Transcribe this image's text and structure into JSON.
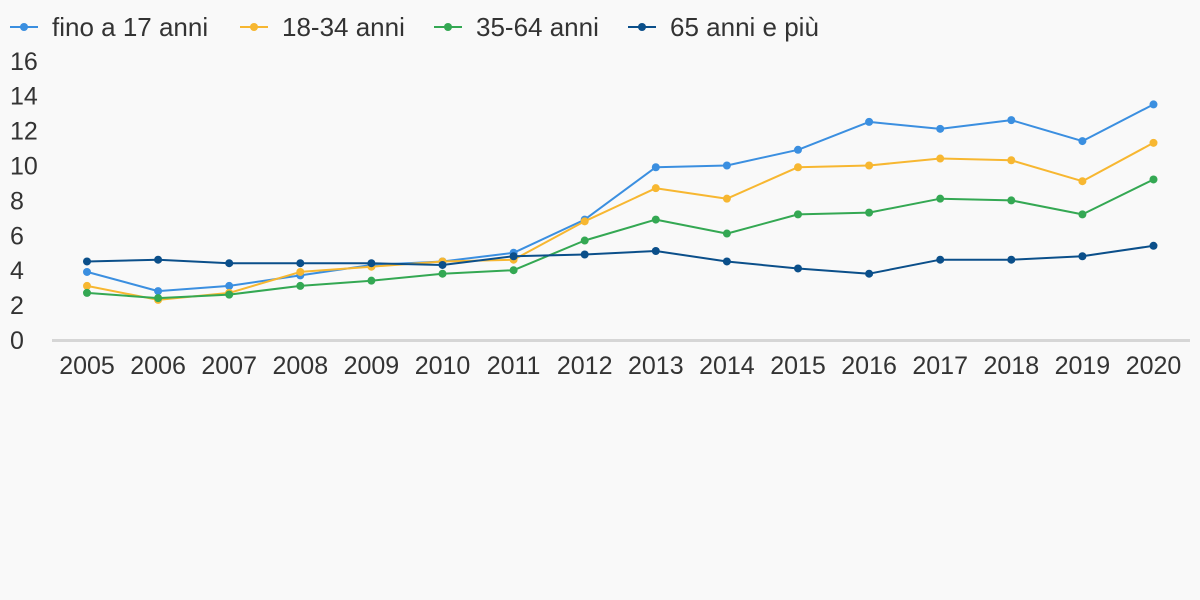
{
  "chart_data": {
    "type": "line",
    "categories": [
      "2005",
      "2006",
      "2007",
      "2008",
      "2009",
      "2010",
      "2011",
      "2012",
      "2013",
      "2014",
      "2015",
      "2016",
      "2017",
      "2018",
      "2019",
      "2020"
    ],
    "ylim": [
      0,
      16
    ],
    "yticks": [
      0,
      2,
      4,
      6,
      8,
      10,
      12,
      14,
      16
    ],
    "grid": false,
    "legend": "top-left",
    "title": "",
    "xlabel": "",
    "ylabel": "",
    "series": [
      {
        "name": "fino a 17 anni",
        "color": "#3b8fe0",
        "values": [
          3.9,
          2.8,
          3.1,
          3.7,
          4.3,
          4.5,
          5.0,
          6.9,
          9.9,
          10.0,
          10.9,
          12.5,
          12.1,
          12.6,
          11.4,
          13.5
        ]
      },
      {
        "name": "18-34 anni",
        "color": "#f7b731",
        "values": [
          3.1,
          2.3,
          2.7,
          3.9,
          4.2,
          4.5,
          4.6,
          6.8,
          8.7,
          8.1,
          9.9,
          10.0,
          10.4,
          10.3,
          9.1,
          11.3
        ]
      },
      {
        "name": "35-64 anni",
        "color": "#34a853",
        "values": [
          2.7,
          2.4,
          2.6,
          3.1,
          3.4,
          3.8,
          4.0,
          5.7,
          6.9,
          6.1,
          7.2,
          7.3,
          8.1,
          8.0,
          7.2,
          9.2
        ]
      },
      {
        "name": "65 anni e più",
        "color": "#0b4f8a",
        "values": [
          4.5,
          4.6,
          4.4,
          4.4,
          4.4,
          4.3,
          4.8,
          4.9,
          5.1,
          4.5,
          4.1,
          3.8,
          4.6,
          4.6,
          4.8,
          5.4
        ]
      }
    ]
  }
}
